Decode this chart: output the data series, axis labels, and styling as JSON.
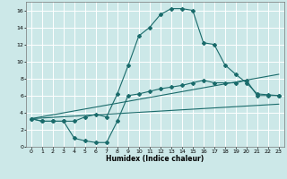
{
  "xlabel": "Humidex (Indice chaleur)",
  "background_color": "#cce8e8",
  "grid_color": "#ffffff",
  "line_color": "#1a6b6b",
  "xlim": [
    -0.5,
    23.5
  ],
  "ylim": [
    0,
    17
  ],
  "xticks": [
    0,
    1,
    2,
    3,
    4,
    5,
    6,
    7,
    8,
    9,
    10,
    11,
    12,
    13,
    14,
    15,
    16,
    17,
    18,
    19,
    20,
    21,
    22,
    23
  ],
  "yticks": [
    0,
    2,
    4,
    6,
    8,
    10,
    12,
    14,
    16
  ],
  "line1_x": [
    0,
    1,
    2,
    3,
    4,
    5,
    6,
    7,
    8,
    9,
    10,
    11,
    12,
    13,
    14,
    15,
    16,
    17,
    18,
    19,
    20,
    21,
    22,
    23
  ],
  "line1_y": [
    3.3,
    3.0,
    3.0,
    3.0,
    3.0,
    3.5,
    3.8,
    3.5,
    6.2,
    9.5,
    13.0,
    14.0,
    15.5,
    16.2,
    16.2,
    16.0,
    12.2,
    12.0,
    9.6,
    8.5,
    7.5,
    6.2,
    6.1,
    6.0
  ],
  "line2_x": [
    0,
    1,
    2,
    3,
    4,
    5,
    6,
    7,
    8,
    9,
    10,
    11,
    12,
    13,
    14,
    15,
    16,
    17,
    18,
    19,
    20,
    21,
    22,
    23
  ],
  "line2_y": [
    3.3,
    3.0,
    3.0,
    3.0,
    1.0,
    0.7,
    0.5,
    0.5,
    3.0,
    6.0,
    6.2,
    6.5,
    6.8,
    7.0,
    7.2,
    7.5,
    7.8,
    7.5,
    7.5,
    7.5,
    7.8,
    6.0,
    6.0,
    6.0
  ],
  "line3_x": [
    0,
    23
  ],
  "line3_y": [
    3.3,
    8.5
  ],
  "line4_x": [
    0,
    23
  ],
  "line4_y": [
    3.3,
    5.0
  ]
}
